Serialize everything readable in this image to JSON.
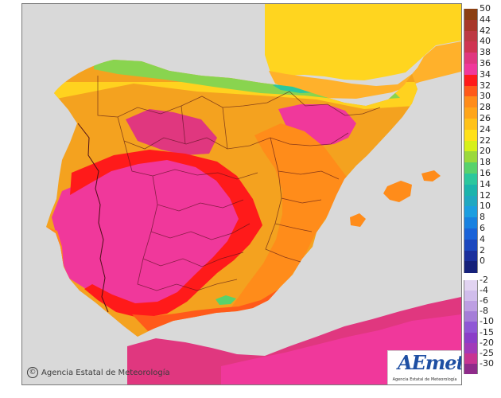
{
  "map": {
    "credit_text": "Agencia Estatal de Meteorología",
    "logo_text": "AEmet",
    "logo_subtext": "Agencia Estatal de Meteorología",
    "land_color": "#f4a21f",
    "sea_color": "#d9d9d9"
  },
  "legend": {
    "positive": [
      {
        "label": "50",
        "color": "#8c3f12"
      },
      {
        "label": "44",
        "color": "#a8372a"
      },
      {
        "label": "42",
        "color": "#bd3a43"
      },
      {
        "label": "40",
        "color": "#cf3552"
      },
      {
        "label": "38",
        "color": "#e0377f"
      },
      {
        "label": "36",
        "color": "#f0389b"
      },
      {
        "label": "34",
        "color": "#ff1a1a"
      },
      {
        "label": "32",
        "color": "#ff5a1a"
      },
      {
        "label": "30",
        "color": "#ff8c1a"
      },
      {
        "label": "28",
        "color": "#ffa51a"
      },
      {
        "label": "26",
        "color": "#ffc21a"
      },
      {
        "label": "24",
        "color": "#ffe11a"
      },
      {
        "label": "22",
        "color": "#d7f01a"
      },
      {
        "label": "20",
        "color": "#9bd93c"
      },
      {
        "label": "18",
        "color": "#58d26c"
      },
      {
        "label": "16",
        "color": "#2cc79d"
      },
      {
        "label": "14",
        "color": "#1cb4ac"
      },
      {
        "label": "12",
        "color": "#20a8c1"
      },
      {
        "label": "10",
        "color": "#1c9ee0"
      },
      {
        "label": "8",
        "color": "#1881e0"
      },
      {
        "label": "6",
        "color": "#1a63d8"
      },
      {
        "label": "4",
        "color": "#1b47be"
      },
      {
        "label": "2",
        "color": "#1a2f9c"
      },
      {
        "label": "0",
        "color": "#15217a"
      }
    ],
    "negative": [
      {
        "label": "-2",
        "color": "#e1d3f1"
      },
      {
        "label": "-4",
        "color": "#d0bdeb"
      },
      {
        "label": "-6",
        "color": "#bd9fe2"
      },
      {
        "label": "-8",
        "color": "#a57ed8"
      },
      {
        "label": "-10",
        "color": "#8f58d5"
      },
      {
        "label": "-15",
        "color": "#8b3ec8"
      },
      {
        "label": "-20",
        "color": "#a13ab9"
      },
      {
        "label": "-25",
        "color": "#c73492"
      },
      {
        "label": "-30",
        "color": "#8f2b8a"
      }
    ]
  }
}
